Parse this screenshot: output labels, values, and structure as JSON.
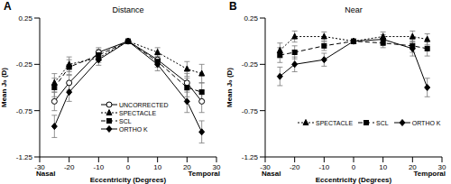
{
  "chart_data": [
    {
      "type": "line",
      "panel_label": "A",
      "title": "Distance",
      "x_label": "Eccentricity (Degrees)",
      "y_label": "Mean J₀ (D)",
      "annotations": [
        "Nasal",
        "Temporal"
      ],
      "x": [
        -25,
        -20,
        -10,
        0,
        10,
        20,
        25
      ],
      "xlim": [
        -30,
        30
      ],
      "xticks": [
        -30,
        -20,
        -10,
        0,
        10,
        20,
        30
      ],
      "ylim": [
        -1.25,
        0.25
      ],
      "yticks": [
        0.25,
        -0.25,
        -0.75,
        -1.25
      ],
      "grid": false,
      "legend": "bottom",
      "series": [
        {
          "name": "UNCORRECTED",
          "color": "#000000",
          "marker": "circle-open",
          "line_style": "solid",
          "values": [
            -0.65,
            -0.45,
            -0.12,
            0.0,
            -0.2,
            -0.45,
            -0.65
          ],
          "errors": [
            0.1,
            0.08,
            0.05,
            0,
            0.06,
            0.1,
            0.12
          ]
        },
        {
          "name": "SPECTACLE",
          "color": "#000000",
          "marker": "triangle",
          "line_style": "dotted",
          "values": [
            -0.45,
            -0.25,
            -0.18,
            0.0,
            -0.12,
            -0.3,
            -0.35
          ],
          "errors": [
            0.1,
            0.08,
            0.05,
            0,
            0.05,
            0.08,
            0.1
          ]
        },
        {
          "name": "SCL",
          "color": "#000000",
          "marker": "square",
          "line_style": "dashed",
          "values": [
            -0.5,
            -0.28,
            -0.15,
            0.0,
            -0.22,
            -0.5,
            -0.55
          ],
          "errors": [
            0.1,
            0.08,
            0.06,
            0,
            0.06,
            0.1,
            0.1
          ]
        },
        {
          "name": "ORTHO K",
          "color": "#000000",
          "marker": "diamond",
          "line_style": "solid",
          "values": [
            -0.92,
            -0.55,
            -0.2,
            0.0,
            -0.25,
            -0.65,
            -0.98
          ],
          "errors": [
            0.12,
            0.1,
            0.06,
            0,
            0.07,
            0.12,
            0.12
          ]
        }
      ]
    },
    {
      "type": "line",
      "panel_label": "B",
      "title": "Near",
      "x_label": "Eccentricity (Degrees)",
      "y_label": "Mean J₀ (D)",
      "annotations": [
        "Nasal",
        "Temporal"
      ],
      "x": [
        -25,
        -20,
        -10,
        0,
        10,
        20,
        25
      ],
      "xlim": [
        -30,
        30
      ],
      "xticks": [
        -30,
        -20,
        -10,
        0,
        10,
        20,
        30
      ],
      "ylim": [
        -1.25,
        0.25
      ],
      "yticks": [
        0.25,
        -0.25,
        -0.75,
        -1.25
      ],
      "grid": false,
      "legend": "bottom",
      "series": [
        {
          "name": "SPECTACLE",
          "color": "#000000",
          "marker": "triangle",
          "line_style": "dotted",
          "values": [
            -0.1,
            0.05,
            0.05,
            0.0,
            0.05,
            0.05,
            0.02
          ],
          "errors": [
            0.08,
            0.06,
            0.05,
            0,
            0.05,
            0.06,
            0.06
          ]
        },
        {
          "name": "SCL",
          "color": "#000000",
          "marker": "square",
          "line_style": "dashed",
          "values": [
            -0.15,
            -0.12,
            -0.05,
            0.0,
            -0.02,
            -0.05,
            -0.08
          ],
          "errors": [
            0.08,
            0.07,
            0.05,
            0,
            0.05,
            0.07,
            0.08
          ]
        },
        {
          "name": "ORTHO K",
          "color": "#000000",
          "marker": "diamond",
          "line_style": "solid",
          "values": [
            -0.38,
            -0.25,
            -0.2,
            0.0,
            0.02,
            -0.08,
            -0.5
          ],
          "errors": [
            0.1,
            0.08,
            0.07,
            0,
            0.05,
            0.08,
            0.1
          ]
        }
      ]
    }
  ]
}
